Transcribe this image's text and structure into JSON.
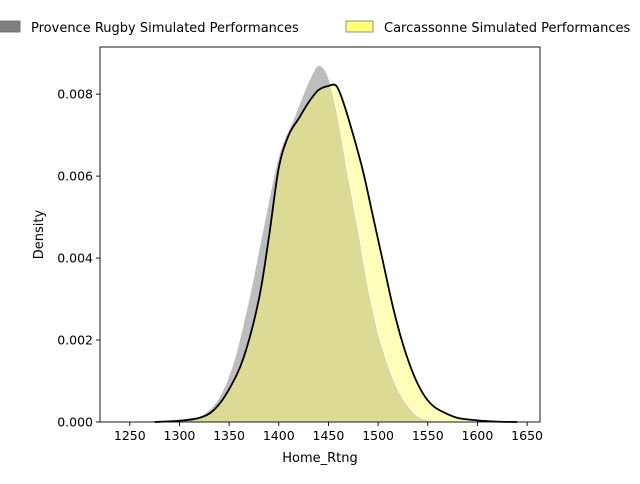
{
  "chart_data": {
    "type": "area",
    "title": "",
    "xlabel": "Home_Rtng",
    "ylabel": "Density",
    "xlim": [
      1220,
      1663
    ],
    "ylim": [
      0,
      0.00915
    ],
    "xticks": [
      1250,
      1300,
      1350,
      1400,
      1450,
      1500,
      1550,
      1600,
      1650
    ],
    "yticks": [
      0,
      0.002,
      0.004,
      0.006,
      0.008
    ],
    "ytick_labels": [
      "0.000",
      "0.002",
      "0.004",
      "0.006",
      "0.008"
    ],
    "grid": false,
    "legend_position": "top",
    "series": [
      {
        "name": "Provence Rugby Simulated Performances",
        "color": "#808080",
        "points": [
          [
            1255,
            0
          ],
          [
            1270,
            2e-05
          ],
          [
            1290,
            5e-05
          ],
          [
            1310,
            0.0001
          ],
          [
            1325,
            0.0002
          ],
          [
            1340,
            0.0006
          ],
          [
            1355,
            0.0015
          ],
          [
            1370,
            0.003
          ],
          [
            1385,
            0.0048
          ],
          [
            1400,
            0.0065
          ],
          [
            1415,
            0.0074
          ],
          [
            1430,
            0.0083
          ],
          [
            1440,
            0.0087
          ],
          [
            1450,
            0.0084
          ],
          [
            1460,
            0.0074
          ],
          [
            1470,
            0.006
          ],
          [
            1480,
            0.0047
          ],
          [
            1490,
            0.0033
          ],
          [
            1500,
            0.0022
          ],
          [
            1510,
            0.0014
          ],
          [
            1520,
            0.0008
          ],
          [
            1530,
            0.0004
          ],
          [
            1540,
            0.00015
          ],
          [
            1550,
            5e-05
          ],
          [
            1565,
            0
          ]
        ]
      },
      {
        "name": "Carcassonne Simulated Performances",
        "color": "#ffff66",
        "points": [
          [
            1275,
            0
          ],
          [
            1300,
            3e-05
          ],
          [
            1320,
            0.0001
          ],
          [
            1335,
            0.0003
          ],
          [
            1350,
            0.0008
          ],
          [
            1365,
            0.0016
          ],
          [
            1380,
            0.003
          ],
          [
            1390,
            0.0045
          ],
          [
            1400,
            0.0062
          ],
          [
            1410,
            0.007
          ],
          [
            1420,
            0.0074
          ],
          [
            1430,
            0.0078
          ],
          [
            1440,
            0.0081
          ],
          [
            1450,
            0.0082
          ],
          [
            1458,
            0.0082
          ],
          [
            1465,
            0.0078
          ],
          [
            1475,
            0.007
          ],
          [
            1485,
            0.0061
          ],
          [
            1495,
            0.005
          ],
          [
            1505,
            0.0039
          ],
          [
            1515,
            0.0028
          ],
          [
            1525,
            0.0019
          ],
          [
            1535,
            0.0012
          ],
          [
            1545,
            0.0007
          ],
          [
            1555,
            0.0004
          ],
          [
            1565,
            0.00025
          ],
          [
            1580,
            0.0001
          ],
          [
            1600,
            4e-05
          ],
          [
            1620,
            1e-05
          ],
          [
            1640,
            0
          ]
        ]
      }
    ]
  }
}
